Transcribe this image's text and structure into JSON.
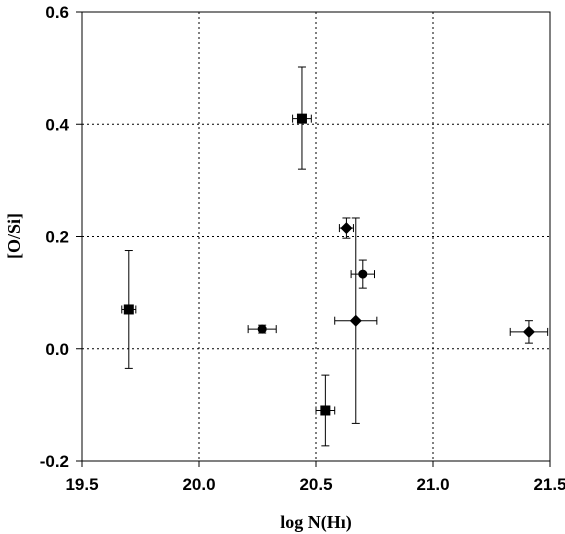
{
  "chart_data": {
    "type": "scatter",
    "xlabel": "log N(Hı)",
    "ylabel": "[O/Si]",
    "xlim": [
      19.5,
      21.5
    ],
    "ylim": [
      -0.2,
      0.6
    ],
    "x_ticks": [
      19.5,
      20.0,
      20.5,
      21.0,
      21.5
    ],
    "x_tick_labels": [
      "19.5",
      "20.0",
      "20.5",
      "21.0",
      "21.5"
    ],
    "y_ticks": [
      -0.2,
      0.0,
      0.2,
      0.4,
      0.6
    ],
    "y_tick_labels": [
      "-0.2",
      "0.0",
      "0.2",
      "0.4",
      "0.6"
    ],
    "grid": "dotted",
    "series": [
      {
        "marker": "square",
        "points": [
          {
            "x": 19.7,
            "y": 0.07,
            "xerr": 0.03,
            "yerr_low": 0.105,
            "yerr_high": 0.105
          },
          {
            "x": 20.44,
            "y": 0.41,
            "xerr": 0.04,
            "yerr_low": 0.09,
            "yerr_high": 0.092
          },
          {
            "x": 20.54,
            "y": -0.11,
            "xerr": 0.04,
            "yerr_low": 0.063,
            "yerr_high": 0.063
          }
        ]
      },
      {
        "marker": "circle",
        "points": [
          {
            "x": 20.27,
            "y": 0.035,
            "xerr": 0.06,
            "yerr_low": 0.007,
            "yerr_high": 0.007
          },
          {
            "x": 20.7,
            "y": 0.133,
            "xerr": 0.05,
            "yerr_low": 0.025,
            "yerr_high": 0.025
          }
        ]
      },
      {
        "marker": "diamond",
        "points": [
          {
            "x": 20.63,
            "y": 0.215,
            "xerr": 0.03,
            "yerr_low": 0.018,
            "yerr_high": 0.018
          },
          {
            "x": 20.67,
            "y": 0.05,
            "xerr": 0.09,
            "yerr_low": 0.183,
            "yerr_high": 0.183
          },
          {
            "x": 21.41,
            "y": 0.03,
            "xerr": 0.08,
            "yerr_low": 0.02,
            "yerr_high": 0.02
          }
        ]
      }
    ]
  }
}
